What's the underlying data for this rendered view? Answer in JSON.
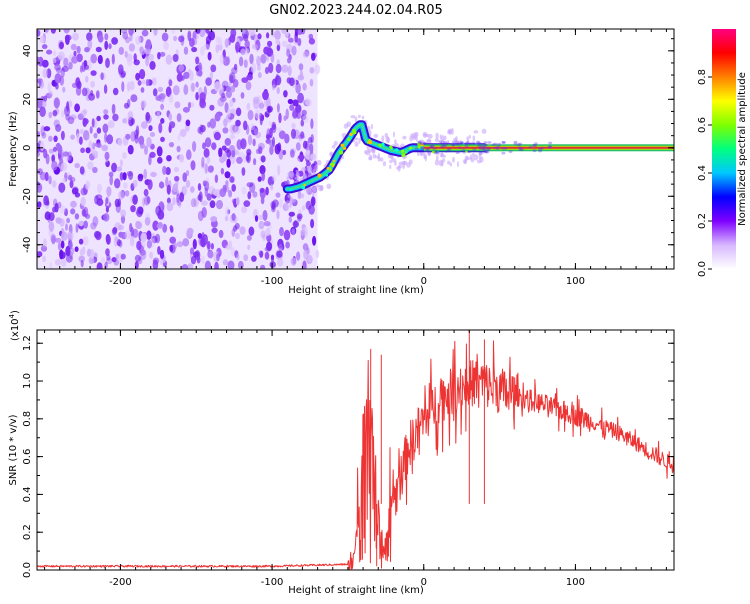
{
  "title": "GN02.2023.244.02.04.R05",
  "chart_data": [
    {
      "type": "heatmap",
      "xlabel": "Height of straight line (km)",
      "ylabel": "Frequency (Hz)",
      "xlim": [
        -255,
        165
      ],
      "ylim": [
        -50,
        49
      ],
      "x_ticks": [
        "-200",
        "-100",
        "0",
        "100"
      ],
      "y_ticks": [
        "40",
        "20",
        "0",
        "-20",
        "-40"
      ],
      "colorbar": {
        "label": "Normalized spectral amplitude",
        "range": [
          0,
          1
        ],
        "ticks": [
          "0.0",
          "0.2",
          "0.4",
          "0.6",
          "0.8"
        ],
        "colors": [
          "#ffffff",
          "#d7b8ff",
          "#7f00ff",
          "#0000ff",
          "#00c8ff",
          "#00ff7f",
          "#7fff00",
          "#ffff00",
          "#ff8000",
          "#ff0000",
          "#ff0080"
        ]
      },
      "noise_region_x": [
        -255,
        -70
      ],
      "trace": [
        {
          "x": -88,
          "y": -17
        },
        {
          "x": -82,
          "y": -16
        },
        {
          "x": -75,
          "y": -14
        },
        {
          "x": -68,
          "y": -12
        },
        {
          "x": -62,
          "y": -9
        },
        {
          "x": -56,
          "y": -2
        },
        {
          "x": -50,
          "y": 3
        },
        {
          "x": -45,
          "y": 8
        },
        {
          "x": -41,
          "y": 10
        },
        {
          "x": -38,
          "y": 3
        },
        {
          "x": -30,
          "y": 1
        },
        {
          "x": -22,
          "y": -1
        },
        {
          "x": -15,
          "y": -2
        },
        {
          "x": -8,
          "y": 0
        },
        {
          "x": 0,
          "y": 0
        },
        {
          "x": 165,
          "y": 0
        }
      ]
    },
    {
      "type": "line",
      "xlabel": "Height of straight line (km)",
      "ylabel": "SNR (10 * v/v)",
      "multiplier_label": "(x10",
      "multiplier_exp": "4",
      "multiplier_close": ")",
      "xlim": [
        -255,
        165
      ],
      "ylim": [
        0,
        1.27
      ],
      "x_ticks": [
        "-200",
        "-100",
        "0",
        "100"
      ],
      "y_ticks": [
        "0.0",
        "0.2",
        "0.4",
        "0.6",
        "0.8",
        "1.0",
        "1.2"
      ],
      "color": "#ee3333",
      "envelope": [
        {
          "x": -255,
          "y": 0.02
        },
        {
          "x": -100,
          "y": 0.02
        },
        {
          "x": -50,
          "y": 0.03
        },
        {
          "x": -45,
          "y": 0.1
        },
        {
          "x": -40,
          "y": 0.45
        },
        {
          "x": -35,
          "y": 0.55
        },
        {
          "x": -30,
          "y": 0.2
        },
        {
          "x": -25,
          "y": 0.1
        },
        {
          "x": -20,
          "y": 0.35
        },
        {
          "x": -10,
          "y": 0.65
        },
        {
          "x": 0,
          "y": 0.8
        },
        {
          "x": 10,
          "y": 0.9
        },
        {
          "x": 20,
          "y": 0.95
        },
        {
          "x": 35,
          "y": 1.0
        },
        {
          "x": 50,
          "y": 0.95
        },
        {
          "x": 70,
          "y": 0.9
        },
        {
          "x": 100,
          "y": 0.82
        },
        {
          "x": 130,
          "y": 0.72
        },
        {
          "x": 165,
          "y": 0.55
        }
      ],
      "spikes": [
        {
          "x": -35,
          "y": 1.17
        },
        {
          "x": -31,
          "y": 0.02
        },
        {
          "x": -28,
          "y": 1.14
        },
        {
          "x": 30,
          "y": 1.27
        },
        {
          "x": 40,
          "y": 1.22
        }
      ]
    }
  ]
}
